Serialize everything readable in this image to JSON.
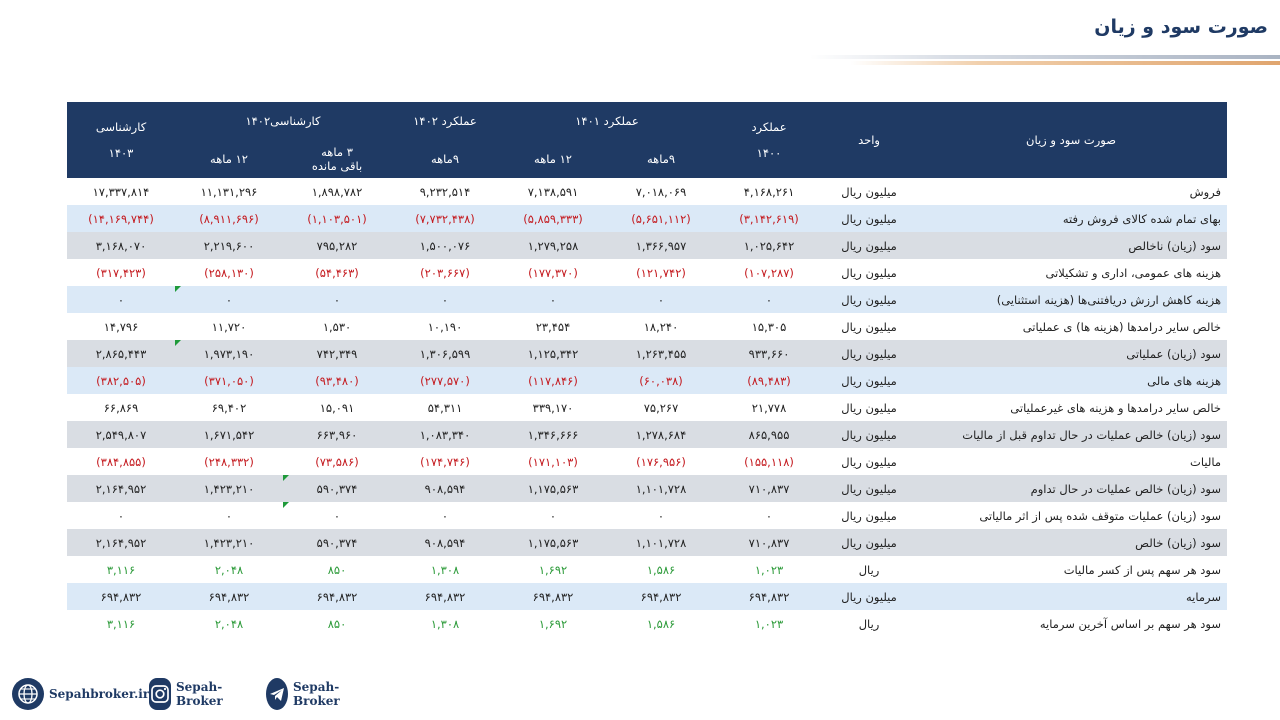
{
  "title": "صورت سود و زیان",
  "header": {
    "item": "صورت سود و زیان",
    "unit": "واحد",
    "perf1400": [
      "عملکرد",
      "۱۴۰۰"
    ],
    "perf1401": "عملکرد ۱۴۰۱",
    "perf1401_9m": "۹ماهه",
    "perf1401_12m": "۱۲ ماهه",
    "perf1402": "عملکرد ۱۴۰۲",
    "perf1402_9m": "۹ماهه",
    "exp1402": "کارشناسی۱۴۰۲",
    "exp1402_3m": [
      "۳ ماهه",
      "باقی مانده"
    ],
    "exp1402_12m": "۱۲ ماهه",
    "exp1403": [
      "کارشناسی",
      "۱۴۰۳"
    ]
  },
  "rows": [
    {
      "label": "فروش",
      "unit": "میلیون ریال",
      "values": [
        "۴,۱۶۸,۲۶۱",
        "۷,۰۱۸,۰۶۹",
        "۷,۱۳۸,۵۹۱",
        "۹,۲۳۲,۵۱۴",
        "۱,۸۹۸,۷۸۲",
        "۱۱,۱۳۱,۲۹۶",
        "۱۷,۳۳۷,۸۱۴"
      ]
    },
    {
      "label": "بهای تمام شده کالای فروش رفته",
      "unit": "میلیون ریال",
      "values": [
        "(۳,۱۴۲,۶۱۹)",
        "(۵,۶۵۱,۱۱۲)",
        "(۵,۸۵۹,۳۳۳)",
        "(۷,۷۳۲,۴۳۸)",
        "(۱,۱۰۳,۵۰۱)",
        "(۸,۹۱۱,۶۹۶)",
        "(۱۴,۱۶۹,۷۴۴)"
      ]
    },
    {
      "label": "سود (زیان) ناخالص",
      "unit": "میلیون ریال",
      "values": [
        "۱,۰۲۵,۶۴۲",
        "۱,۳۶۶,۹۵۷",
        "۱,۲۷۹,۲۵۸",
        "۱,۵۰۰,۰۷۶",
        "۷۹۵,۲۸۲",
        "۲,۲۱۹,۶۰۰",
        "۳,۱۶۸,۰۷۰"
      ]
    },
    {
      "label": "هزینه های عمومی، اداری و تشکیلاتی",
      "unit": "میلیون ریال",
      "values": [
        "(۱۰۷,۲۸۷)",
        "(۱۲۱,۷۴۲)",
        "(۱۷۷,۳۷۰)",
        "(۲۰۳,۶۶۷)",
        "(۵۴,۴۶۳)",
        "(۲۵۸,۱۳۰)",
        "(۳۱۷,۴۲۳)"
      ]
    },
    {
      "label": "هزینه کاهش ارزش دریافتنی‌ها (هزینه استثنایی)",
      "unit": "میلیون ریال",
      "values": [
        "۰",
        "۰",
        "۰",
        "۰",
        "۰",
        "۰",
        "۰"
      ]
    },
    {
      "label": "خالص سایر درامدها (هزینه ها) ی عملیاتی",
      "unit": "میلیون ریال",
      "values": [
        "۱۵,۳۰۵",
        "۱۸,۲۴۰",
        "۲۳,۴۵۴",
        "۱۰,۱۹۰",
        "۱,۵۳۰",
        "۱۱,۷۲۰",
        "۱۴,۷۹۶"
      ]
    },
    {
      "label": "سود (زیان) عملیاتی",
      "unit": "میلیون ریال",
      "values": [
        "۹۳۳,۶۶۰",
        "۱,۲۶۳,۴۵۵",
        "۱,۱۲۵,۳۴۲",
        "۱,۳۰۶,۵۹۹",
        "۷۴۲,۳۴۹",
        "۱,۹۷۳,۱۹۰",
        "۲,۸۶۵,۴۴۳"
      ]
    },
    {
      "label": "هزینه های مالی",
      "unit": "میلیون ریال",
      "values": [
        "(۸۹,۴۸۳)",
        "(۶۰,۰۳۸)",
        "(۱۱۷,۸۴۶)",
        "(۲۷۷,۵۷۰)",
        "(۹۳,۴۸۰)",
        "(۳۷۱,۰۵۰)",
        "(۳۸۲,۵۰۵)"
      ]
    },
    {
      "label": "خالص سایر درامدها و هزینه های غیرعملیاتی",
      "unit": "میلیون ریال",
      "values": [
        "۲۱,۷۷۸",
        "۷۵,۲۶۷",
        "۳۳۹,۱۷۰",
        "۵۴,۳۱۱",
        "۱۵,۰۹۱",
        "۶۹,۴۰۲",
        "۶۶,۸۶۹"
      ]
    },
    {
      "label": "سود (زیان) خالص عملیات در حال تداوم قبل از مالیات",
      "unit": "میلیون ریال",
      "values": [
        "۸۶۵,۹۵۵",
        "۱,۲۷۸,۶۸۴",
        "۱,۳۴۶,۶۶۶",
        "۱,۰۸۳,۳۴۰",
        "۶۶۳,۹۶۰",
        "۱,۶۷۱,۵۴۲",
        "۲,۵۴۹,۸۰۷"
      ]
    },
    {
      "label": "مالیات",
      "unit": "میلیون ریال",
      "values": [
        "(۱۵۵,۱۱۸)",
        "(۱۷۶,۹۵۶)",
        "(۱۷۱,۱۰۳)",
        "(۱۷۴,۷۴۶)",
        "(۷۳,۵۸۶)",
        "(۲۴۸,۳۳۲)",
        "(۳۸۴,۸۵۵)"
      ]
    },
    {
      "label": "سود (زیان) خالص عملیات در حال تداوم",
      "unit": "میلیون ریال",
      "values": [
        "۷۱۰,۸۳۷",
        "۱,۱۰۱,۷۲۸",
        "۱,۱۷۵,۵۶۳",
        "۹۰۸,۵۹۴",
        "۵۹۰,۳۷۴",
        "۱,۴۲۳,۲۱۰",
        "۲,۱۶۴,۹۵۲"
      ]
    },
    {
      "label": "سود (زیان) عملیات متوقف شده پس از اثر مالیاتی",
      "unit": "میلیون ریال",
      "values": [
        "۰",
        "۰",
        "۰",
        "۰",
        "۰",
        "۰",
        "۰"
      ]
    },
    {
      "label": "سود (زیان) خالص",
      "unit": "میلیون ریال",
      "values": [
        "۷۱۰,۸۳۷",
        "۱,۱۰۱,۷۲۸",
        "۱,۱۷۵,۵۶۳",
        "۹۰۸,۵۹۴",
        "۵۹۰,۳۷۴",
        "۱,۴۲۳,۲۱۰",
        "۲,۱۶۴,۹۵۲"
      ]
    },
    {
      "label": "سود هر سهم پس از کسر مالیات",
      "unit": "ریال",
      "values": [
        "۱,۰۲۳",
        "۱,۵۸۶",
        "۱,۶۹۲",
        "۱,۳۰۸",
        "۸۵۰",
        "۲,۰۴۸",
        "۳,۱۱۶"
      ]
    },
    {
      "label": "سرمایه",
      "unit": "میلیون ریال",
      "values": [
        "۶۹۴,۸۳۲",
        "۶۹۴,۸۳۲",
        "۶۹۴,۸۳۲",
        "۶۹۴,۸۳۲",
        "۶۹۴,۸۳۲",
        "۶۹۴,۸۳۲",
        "۶۹۴,۸۳۲"
      ]
    },
    {
      "label": "سود هر سهم بر اساس آخرین سرمایه",
      "unit": "ریال",
      "values": [
        "۱,۰۲۳",
        "۱,۵۸۶",
        "۱,۶۹۲",
        "۱,۳۰۸",
        "۸۵۰",
        "۲,۰۴۸",
        "۳,۱۱۶"
      ]
    }
  ],
  "footer": {
    "website": "Sepahbroker.ir",
    "instagram": "Sepah-Broker",
    "telegram": "Sepah-Broker"
  },
  "colors": {
    "header": "#1f3a64",
    "negative": "#c41a1f",
    "positive_eps": "#2d9b3a",
    "shade": "#d9dde3",
    "blue_row": "#dbe9f7"
  }
}
